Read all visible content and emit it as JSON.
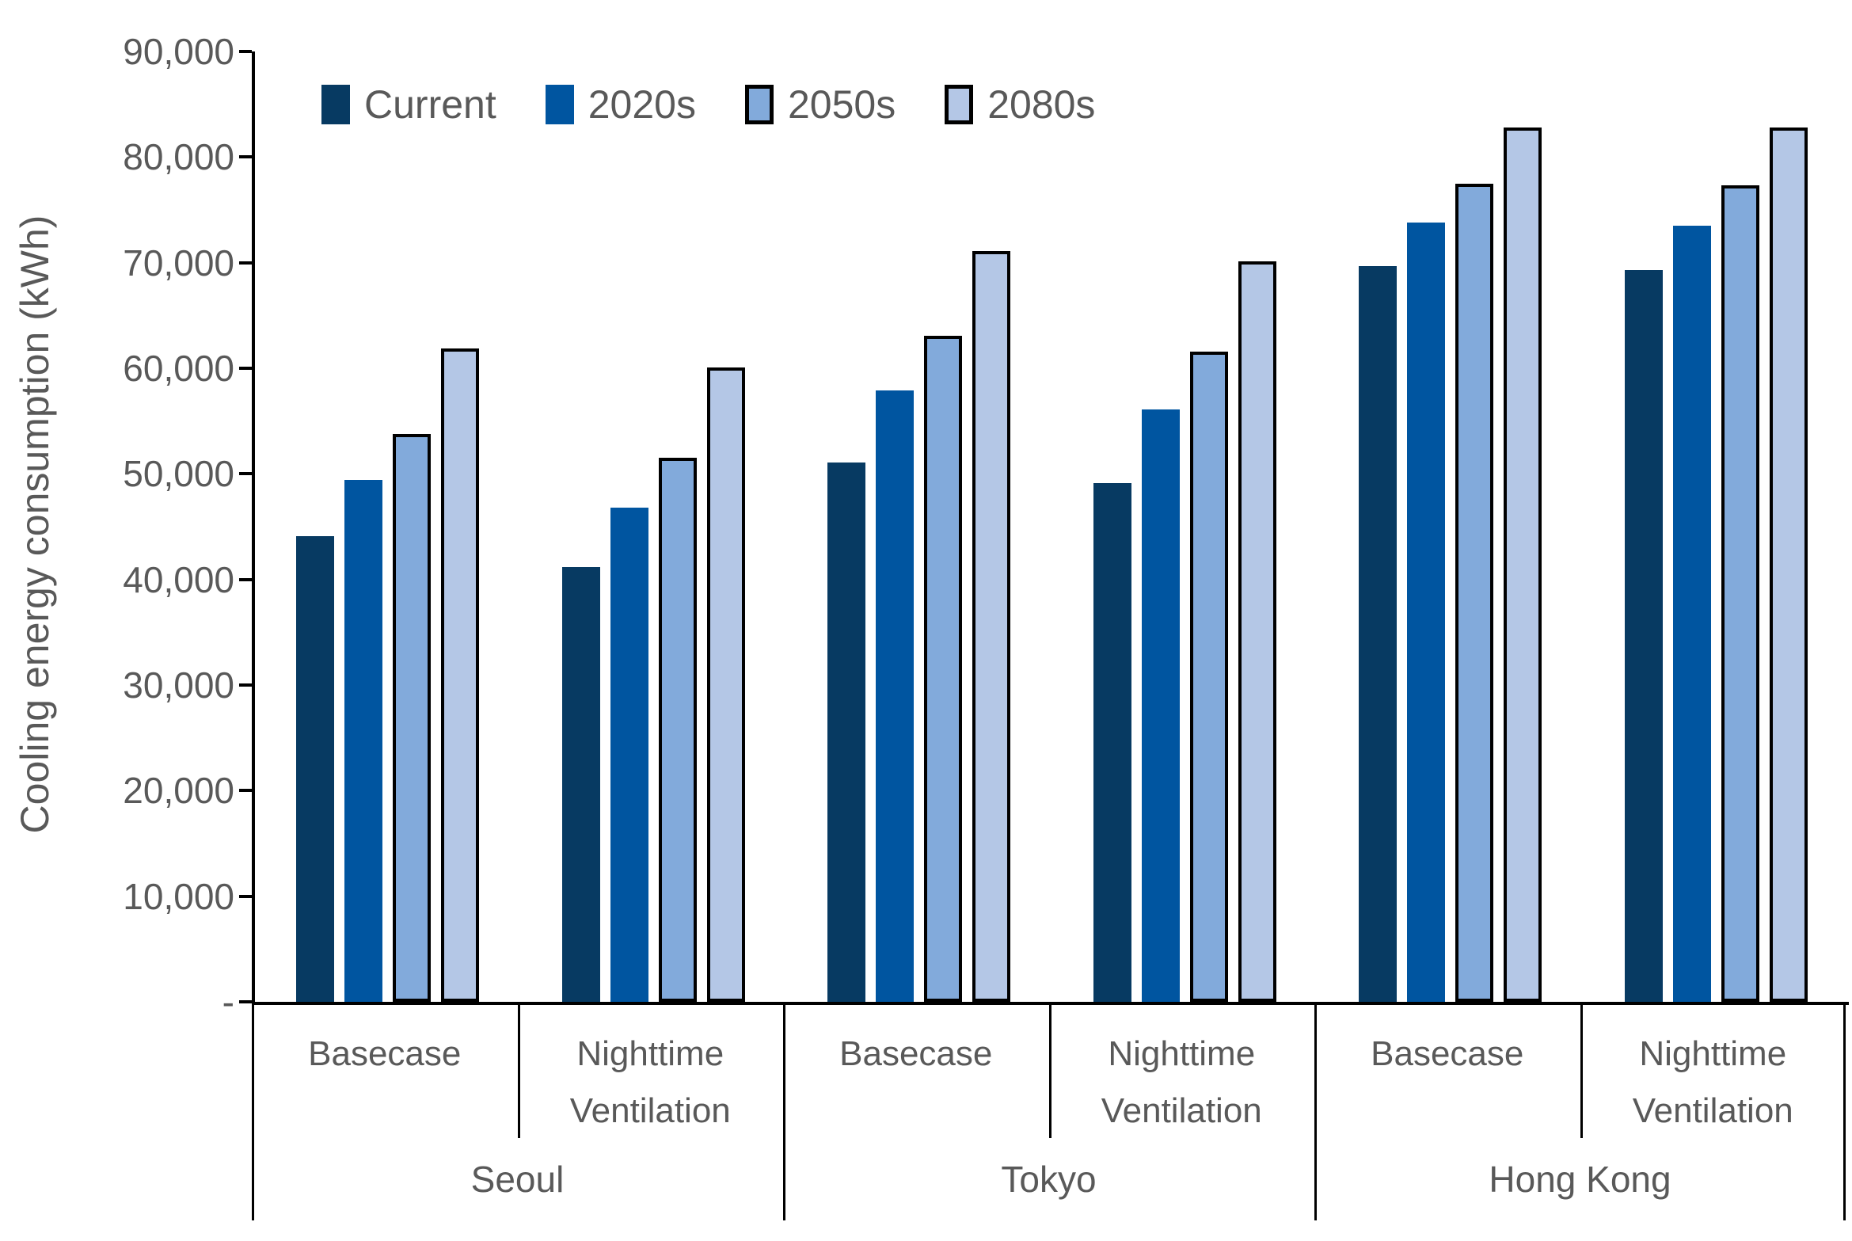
{
  "chart_data": {
    "type": "bar",
    "title": "",
    "ylabel": "Cooling energy consumption (kWh)",
    "ylim": [
      0,
      90000
    ],
    "ytick_step": 10000,
    "ytick_labels_top_down": [
      "90,000",
      "80,000",
      "70,000",
      "60,000",
      "50,000",
      "40,000",
      "30,000",
      "20,000",
      "10,000",
      "-"
    ],
    "grid": false,
    "legend_position": "top-left-inside",
    "axis_color": "#000000",
    "label_color": "#595959",
    "categories": {
      "scenarios": [
        "Basecase",
        "Nighttime Ventilation",
        "Basecase",
        "Nighttime Ventilation",
        "Basecase",
        "Nighttime Ventilation"
      ],
      "cities": [
        "Seoul",
        "Tokyo",
        "Hong Kong"
      ]
    },
    "series": [
      {
        "name": "Current",
        "color": "#073a62",
        "border_color": null,
        "values": [
          44100,
          41200,
          51100,
          49100,
          69700,
          69300
        ]
      },
      {
        "name": "2020s",
        "color": "#0055a0",
        "border_color": null,
        "values": [
          49400,
          46800,
          57900,
          56100,
          73800,
          73500
        ]
      },
      {
        "name": "2050s",
        "color": "#82aadb",
        "border_color": "#000000",
        "values": [
          53800,
          51500,
          63100,
          61600,
          77500,
          77300
        ]
      },
      {
        "name": "2080s",
        "color": "#b4c7e6",
        "border_color": "#000000",
        "values": [
          61900,
          60100,
          71100,
          70100,
          82800,
          82800
        ]
      }
    ]
  }
}
